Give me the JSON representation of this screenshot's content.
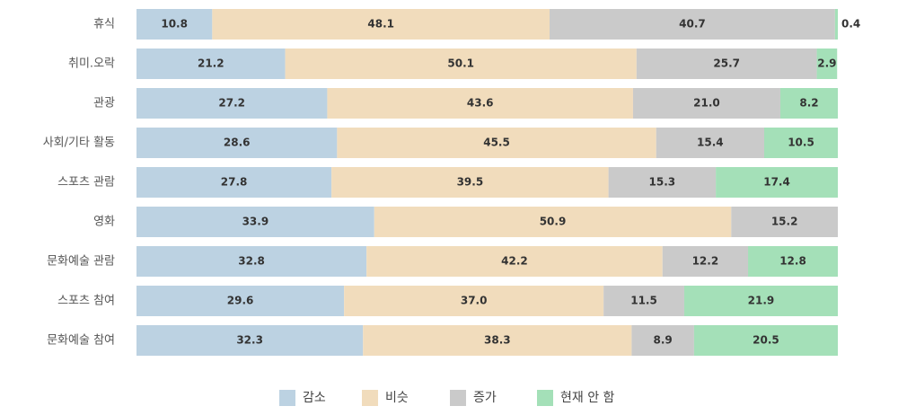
{
  "chart_data": {
    "type": "bar",
    "orientation": "horizontal",
    "stacked": true,
    "categories": [
      "휴식",
      "취미.오락",
      "관광",
      "사회/기타 활동",
      "스포츠 관람",
      "영화",
      "문화예술 관람",
      "스포츠 참여",
      "문화예술 참여"
    ],
    "series": [
      {
        "name": "감소",
        "color": "#bcd2e2",
        "values": [
          10.8,
          21.2,
          27.2,
          28.6,
          27.8,
          33.9,
          32.8,
          29.6,
          32.3
        ]
      },
      {
        "name": "비슷",
        "color": "#f1dcbc",
        "values": [
          48.1,
          50.1,
          43.6,
          45.5,
          39.5,
          50.9,
          42.2,
          37.0,
          38.3
        ]
      },
      {
        "name": "증가",
        "color": "#cacaca",
        "values": [
          40.7,
          25.7,
          21.0,
          15.4,
          15.3,
          15.2,
          12.2,
          11.5,
          8.9
        ]
      },
      {
        "name": "현재 안 함",
        "color": "#a4e0b8",
        "values": [
          0.4,
          2.9,
          8.2,
          10.5,
          17.4,
          0,
          12.8,
          21.9,
          20.5
        ]
      }
    ],
    "xlim": [
      0,
      100
    ],
    "grid": false,
    "legend": "bottom-center",
    "title": "",
    "xlabel": "",
    "ylabel": ""
  }
}
